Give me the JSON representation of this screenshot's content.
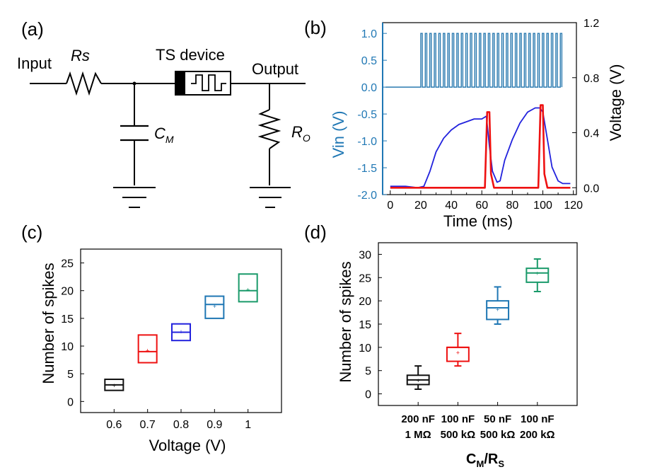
{
  "panels": {
    "a": {
      "letter": "(a)",
      "labels": {
        "input": "Input",
        "rs": "Rs",
        "device": "TS device",
        "output": "Output",
        "cm_main": "C",
        "cm_sub": "M",
        "ro_main": "R",
        "ro_sub": "O"
      }
    },
    "b": {
      "letter": "(b)"
    },
    "c": {
      "letter": "(c)"
    },
    "d": {
      "letter": "(d)",
      "xlabel_main": "C",
      "xlabel_sub1": "M",
      "xlabel_mid": "/R",
      "xlabel_sub2": "S"
    }
  },
  "chart_data": [
    {
      "id": "b",
      "type": "line",
      "xlabel": "Time (ms)",
      "ylabel_left": "Vin (V)",
      "ylabel_right": "Voltage (V)",
      "xlim": [
        -5,
        122
      ],
      "ylim_left": [
        -2.0,
        1.2
      ],
      "ylim_right": [
        -0.05,
        1.2
      ],
      "xticks": [
        0,
        10,
        20,
        30,
        40,
        50,
        60,
        70,
        80,
        90,
        100,
        110,
        120
      ],
      "yticks_left": [
        1.0,
        0.5,
        0.0,
        -0.5,
        -1.0,
        -1.5,
        -2.0
      ],
      "yticks_left_labels": [
        "1.0",
        "0.5",
        "0.0",
        "-0.5",
        "-1.0",
        "-1.5",
        "-2.0"
      ],
      "yticks_right": [
        1.2,
        0.8,
        0.4,
        0.0
      ],
      "yticks_right_labels": [
        "1.2",
        "0.8",
        "0.4",
        "0.0"
      ],
      "pulse_train": {
        "low": 0.0,
        "high": 1.0,
        "start": -3,
        "first_pulse": 20,
        "end": 113,
        "pulse_width": 1.0,
        "period": 2.95,
        "color": "#2a7ab0"
      },
      "series": [
        {
          "color": "#2222dd",
          "x": [
            0,
            10,
            18,
            22,
            26,
            30,
            35,
            40,
            45,
            50,
            55,
            60,
            63,
            65,
            67,
            70,
            72,
            75,
            80,
            85,
            90,
            95,
            98,
            100,
            103,
            106,
            110,
            113,
            115,
            118
          ],
          "y": [
            0.01,
            0.01,
            0.0,
            0.01,
            0.12,
            0.26,
            0.36,
            0.42,
            0.46,
            0.48,
            0.5,
            0.5,
            0.52,
            0.3,
            0.12,
            0.04,
            0.05,
            0.2,
            0.35,
            0.47,
            0.55,
            0.58,
            0.58,
            0.55,
            0.35,
            0.15,
            0.05,
            0.03,
            0.03,
            0.03
          ]
        },
        {
          "color": "#ee1111",
          "x": [
            0,
            10,
            20,
            30,
            40,
            50,
            60,
            62,
            63.5,
            65,
            66,
            68,
            70,
            80,
            90,
            97,
            98.5,
            100,
            101,
            103,
            106,
            110,
            115,
            118
          ],
          "y": [
            0.0,
            0.0,
            0.0,
            0.0,
            0.0,
            0.0,
            0.0,
            0.0,
            0.55,
            0.55,
            0.1,
            0.0,
            0.0,
            0.0,
            0.0,
            0.0,
            0.6,
            0.6,
            0.1,
            0.0,
            0.0,
            0.0,
            0.0,
            0.0
          ]
        }
      ]
    },
    {
      "id": "c",
      "type": "box",
      "xlabel": "Voltage (V)",
      "ylabel": "Number of spikes",
      "categories": [
        "0.6",
        "0.7",
        "0.8",
        "0.9",
        "1"
      ],
      "ylim": [
        -2,
        27.5
      ],
      "yticks": [
        0,
        5,
        10,
        15,
        20,
        25
      ],
      "boxes": [
        {
          "q1": 2,
          "median": 3,
          "q3": 4,
          "mean": 3,
          "color": "#111111"
        },
        {
          "q1": 7,
          "median": 9,
          "q3": 12,
          "mean": 9.3,
          "color": "#ee1111"
        },
        {
          "q1": 11,
          "median": 12.5,
          "q3": 14,
          "mean": 12.7,
          "color": "#2222dd"
        },
        {
          "q1": 15,
          "median": 17.5,
          "q3": 19,
          "mean": 17.3,
          "color": "#1f77b4"
        },
        {
          "q1": 18,
          "median": 20,
          "q3": 23,
          "mean": 20.3,
          "color": "#1a9a6a"
        }
      ]
    },
    {
      "id": "d",
      "type": "box",
      "ylabel": "Number of spikes",
      "categories": [
        [
          "200 nF",
          "1 MΩ"
        ],
        [
          "100 nF",
          "500 kΩ"
        ],
        [
          "50 nF",
          "500 kΩ"
        ],
        [
          "100 nF",
          "200 kΩ"
        ]
      ],
      "ylim": [
        -2.5,
        32.5
      ],
      "yticks": [
        0,
        5,
        10,
        15,
        20,
        25,
        30
      ],
      "boxes": [
        {
          "whisker_low": 1,
          "q1": 2,
          "median": 3,
          "q3": 4,
          "whisker_high": 6,
          "mean": 3,
          "color": "#111111"
        },
        {
          "whisker_low": 6,
          "q1": 7,
          "median": 10,
          "q3": 10,
          "whisker_high": 13,
          "mean": 9,
          "color": "#ee1111"
        },
        {
          "whisker_low": 15,
          "q1": 16,
          "median": 18.5,
          "q3": 20,
          "whisker_high": 23,
          "mean": 18.3,
          "color": "#1f77b4"
        },
        {
          "whisker_low": 22,
          "q1": 24,
          "median": 26,
          "q3": 27,
          "whisker_high": 29,
          "mean": 26,
          "color": "#1a9a6a"
        }
      ]
    }
  ]
}
